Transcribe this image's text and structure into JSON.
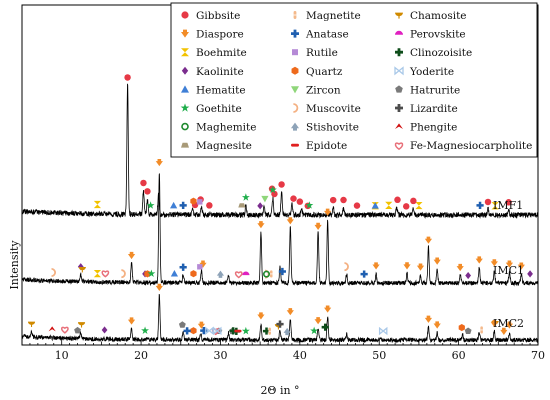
{
  "chart_data": {
    "type": "line",
    "xlabel": "2Θ in °",
    "ylabel": "Intensity",
    "xlim": [
      5,
      70
    ],
    "x_ticks": [
      10,
      20,
      30,
      40,
      50,
      60,
      70
    ],
    "grid": false,
    "legend_position": "top-right",
    "legend": [
      {
        "name": "Gibbsite",
        "marker": "circle",
        "color": "#e63946"
      },
      {
        "name": "Diaspore",
        "marker": "arrow-down",
        "color": "#f28c28"
      },
      {
        "name": "Boehmite",
        "marker": "hourglass",
        "color": "#f2c200"
      },
      {
        "name": "Kaolinite",
        "marker": "diamond",
        "color": "#7b2d8e"
      },
      {
        "name": "Hematite",
        "marker": "triangle-up",
        "color": "#3f7fd6"
      },
      {
        "name": "Goethite",
        "marker": "star",
        "color": "#1fae4b"
      },
      {
        "name": "Maghemite",
        "marker": "ring",
        "color": "#1f8a2e"
      },
      {
        "name": "Magnesite",
        "marker": "trapezoid",
        "color": "#a89a78"
      },
      {
        "name": "Magnetite",
        "marker": "bead",
        "color": "#f4b98b"
      },
      {
        "name": "Anatase",
        "marker": "cross",
        "color": "#1f5fb0"
      },
      {
        "name": "Rutile",
        "marker": "square",
        "color": "#b58ad6"
      },
      {
        "name": "Quartz",
        "marker": "hexagon",
        "color": "#ee6a1c"
      },
      {
        "name": "Zircon",
        "marker": "triangle-down",
        "color": "#8fd67a"
      },
      {
        "name": "Muscovite",
        "marker": "crescent",
        "color": "#f4b183"
      },
      {
        "name": "Stishovite",
        "marker": "arrow-up",
        "color": "#8ea3b8"
      },
      {
        "name": "Epidote",
        "marker": "dash",
        "color": "#e02020"
      },
      {
        "name": "Chamosite",
        "marker": "cup",
        "color": "#d08a00"
      },
      {
        "name": "Perovskite",
        "marker": "half-circle",
        "color": "#e020c0"
      },
      {
        "name": "Clinozoisite",
        "marker": "cross",
        "color": "#0d4d1a"
      },
      {
        "name": "Yoderite",
        "marker": "bowtie",
        "color": "#a9c8e8"
      },
      {
        "name": "Hatrurite",
        "marker": "pentagon",
        "color": "#7a7a7a"
      },
      {
        "name": "Lizardite",
        "marker": "cross",
        "color": "#4d4d4d"
      },
      {
        "name": "Phengite",
        "marker": "hat",
        "color": "#d01010"
      },
      {
        "name": "Fe-Magnesiocarpholite",
        "marker": "heart",
        "color": "#e8707a"
      }
    ],
    "series": [
      {
        "name": "IMF1",
        "baseline": 0,
        "noise": 6,
        "peaks": [
          [
            18.3,
            150
          ],
          [
            20.3,
            28
          ],
          [
            20.8,
            16
          ],
          [
            22.2,
            22
          ],
          [
            26.5,
            8
          ],
          [
            27.6,
            9
          ],
          [
            33.2,
            10
          ],
          [
            35.5,
            9
          ],
          [
            36.6,
            20
          ],
          [
            37.7,
            26
          ],
          [
            39.0,
            12
          ],
          [
            40.2,
            9
          ],
          [
            44.2,
            8
          ],
          [
            45.5,
            7
          ],
          [
            52.2,
            9
          ],
          [
            54.3,
            7
          ],
          [
            63.7,
            7
          ],
          [
            66.3,
            6
          ]
        ],
        "markers": [
          {
            "phase": "Boehmite",
            "x": [
              14.5,
              49.5,
              51.2,
              55.0,
              64.6
            ]
          },
          {
            "phase": "Gibbsite",
            "x": [
              18.3,
              20.3,
              20.8,
              26.8,
              27.5,
              28.6,
              36.5,
              36.8,
              37.7,
              39.2,
              40.0,
              41.0,
              44.2,
              45.5,
              47.2,
              52.3,
              53.4,
              54.3,
              63.7,
              66.3
            ]
          },
          {
            "phase": "Goethite",
            "x": [
              21.2,
              33.2,
              36.6,
              41.2
            ]
          },
          {
            "phase": "Hematite",
            "x": [
              24.1,
              49.5
            ]
          },
          {
            "phase": "Magnesite",
            "x": [
              32.7
            ]
          },
          {
            "phase": "Kaolinite",
            "x": [
              35.0
            ]
          },
          {
            "phase": "Rutile",
            "x": [
              27.4
            ]
          },
          {
            "phase": "Zircon",
            "x": [
              35.6
            ]
          },
          {
            "phase": "Anatase",
            "x": [
              25.3,
              62.7
            ]
          },
          {
            "phase": "Quartz",
            "x": [
              26.6
            ]
          }
        ]
      },
      {
        "name": "IMC1",
        "baseline": 0,
        "noise": 5,
        "peaks": [
          [
            12.4,
            8
          ],
          [
            18.8,
            24
          ],
          [
            22.3,
            130
          ],
          [
            25.3,
            10
          ],
          [
            27.6,
            14
          ],
          [
            31.0,
            8
          ],
          [
            35.1,
            60
          ],
          [
            37.5,
            18
          ],
          [
            38.8,
            65
          ],
          [
            42.3,
            60
          ],
          [
            43.5,
            72
          ],
          [
            45.9,
            10
          ],
          [
            49.6,
            10
          ],
          [
            53.5,
            12
          ],
          [
            55.2,
            8
          ],
          [
            56.2,
            42
          ],
          [
            57.3,
            16
          ],
          [
            60.2,
            10
          ],
          [
            62.6,
            18
          ],
          [
            64.5,
            14
          ],
          [
            66.4,
            12
          ],
          [
            67.9,
            10
          ]
        ],
        "markers": [
          {
            "phase": "Muscovite",
            "x": [
              8.9,
              17.7,
              35.8,
              45.8
            ]
          },
          {
            "phase": "Kaolinite",
            "x": [
              12.4,
              20.5,
              61.2,
              69.0
            ]
          },
          {
            "phase": "Chamosite",
            "x": [
              12.6
            ]
          },
          {
            "phase": "Boehmite",
            "x": [
              14.5
            ]
          },
          {
            "phase": "Fe-Magnesiocarpholite",
            "x": [
              15.5,
              32.3
            ]
          },
          {
            "phase": "Diaspore",
            "x": [
              18.8,
              22.3,
              27.8,
              35.1,
              38.8,
              42.3,
              43.5,
              49.6,
              53.5,
              55.2,
              56.2,
              57.3,
              60.2,
              62.6,
              64.5,
              66.4,
              67.9
            ]
          },
          {
            "phase": "Quartz",
            "x": [
              20.8,
              26.6
            ]
          },
          {
            "phase": "Goethite",
            "x": [
              21.3
            ]
          },
          {
            "phase": "Anatase",
            "x": [
              25.3,
              37.8,
              48.1
            ]
          },
          {
            "phase": "Hematite",
            "x": [
              24.2
            ]
          },
          {
            "phase": "Rutile",
            "x": [
              27.4
            ]
          },
          {
            "phase": "Stishovite",
            "x": [
              30.0
            ]
          },
          {
            "phase": "Perovskite",
            "x": [
              33.2
            ]
          },
          {
            "phase": "Maghemite",
            "x": [
              35.8
            ]
          },
          {
            "phase": "Magnetite",
            "x": [
              36.4
            ]
          }
        ]
      },
      {
        "name": "IMC2",
        "baseline": 0,
        "noise": 5,
        "peaks": [
          [
            6.2,
            6
          ],
          [
            12.4,
            8
          ],
          [
            18.8,
            12
          ],
          [
            22.3,
            52
          ],
          [
            25.3,
            8
          ],
          [
            27.5,
            8
          ],
          [
            31.0,
            8
          ],
          [
            35.1,
            18
          ],
          [
            37.5,
            10
          ],
          [
            38.8,
            24
          ],
          [
            42.3,
            12
          ],
          [
            43.5,
            28
          ],
          [
            45.9,
            6
          ],
          [
            56.2,
            16
          ],
          [
            57.3,
            8
          ],
          [
            60.5,
            6
          ],
          [
            62.6,
            8
          ],
          [
            64.5,
            10
          ],
          [
            66.4,
            8
          ]
        ],
        "markers": [
          {
            "phase": "Chamosite",
            "x": [
              6.2,
              12.5,
              37.3,
              64.6
            ]
          },
          {
            "phase": "Phengite",
            "x": [
              8.8
            ]
          },
          {
            "phase": "Hatrurite",
            "x": [
              12.0,
              25.2,
              29.8,
              31.5,
              61.2
            ]
          },
          {
            "phase": "Fe-Magnesiocarpholite",
            "x": [
              10.4,
              29.4
            ]
          },
          {
            "phase": "Kaolinite",
            "x": [
              15.4
            ]
          },
          {
            "phase": "Diaspore",
            "x": [
              18.8,
              22.3,
              27.6,
              35.1,
              38.8,
              42.3,
              43.5,
              56.2,
              57.3,
              64.5,
              65.7,
              66.4
            ]
          },
          {
            "phase": "Goethite",
            "x": [
              20.5,
              33.2,
              41.8
            ]
          },
          {
            "phase": "Quartz",
            "x": [
              26.6,
              60.4
            ]
          },
          {
            "phase": "Anatase",
            "x": [
              25.8,
              27.9
            ]
          },
          {
            "phase": "Yoderite",
            "x": [
              28.6,
              29.6,
              50.5
            ]
          },
          {
            "phase": "Clinozoisite",
            "x": [
              31.6,
              32.0,
              35.8,
              43.2
            ]
          },
          {
            "phase": "Epidote",
            "x": [
              32.2
            ]
          },
          {
            "phase": "Magnetite",
            "x": [
              36.2,
              62.9
            ]
          },
          {
            "phase": "Lizardite",
            "x": [
              37.5
            ]
          },
          {
            "phase": "Stishovite",
            "x": [
              38.4
            ]
          }
        ]
      }
    ]
  }
}
